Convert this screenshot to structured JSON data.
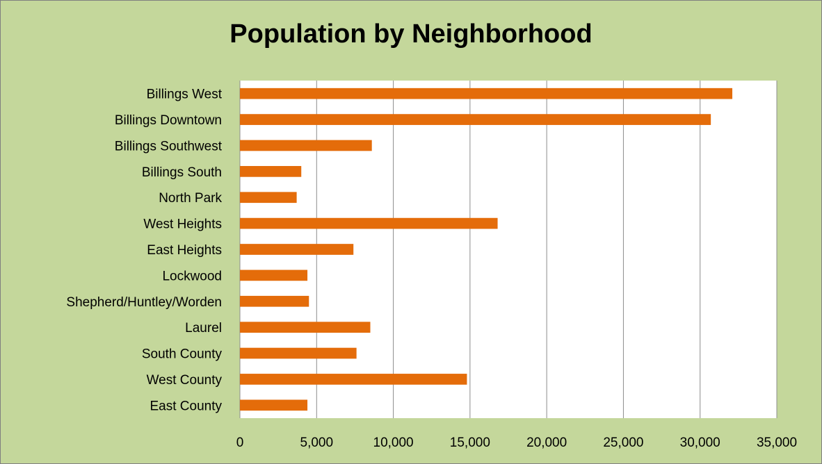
{
  "chart_data": {
    "type": "bar",
    "orientation": "horizontal",
    "title": "Population by Neighborhood",
    "xlabel": "",
    "ylabel": "",
    "categories": [
      "Billings West",
      "Billings Downtown",
      "Billings Southwest",
      "Billings South",
      "North Park",
      "West Heights",
      "East Heights",
      "Lockwood",
      "Shepherd/Huntley/Worden",
      "Laurel",
      "South County",
      "West County",
      "East County"
    ],
    "values": [
      32100,
      30700,
      8600,
      4000,
      3700,
      16800,
      7400,
      4400,
      4500,
      8500,
      7600,
      14800,
      4400
    ],
    "xlim": [
      0,
      35000
    ],
    "ticks": [
      0,
      5000,
      10000,
      15000,
      20000,
      25000,
      30000,
      35000
    ],
    "tick_labels": [
      "0",
      "5,000",
      "10,000",
      "15,000",
      "20,000",
      "25,000",
      "30,000",
      "35,000"
    ],
    "grid": true,
    "legend": "none",
    "colors": {
      "bar": "#e46c0a",
      "plot_background": "#ffffff",
      "chart_background": "#c4d79b",
      "gridline": "#8c8c8c"
    }
  }
}
